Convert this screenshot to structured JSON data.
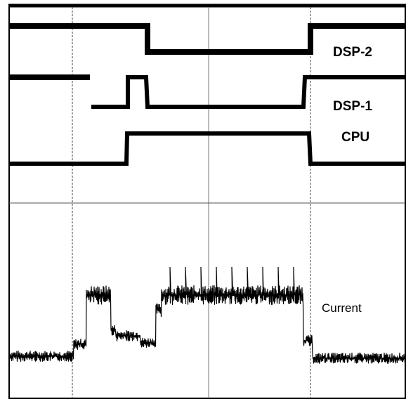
{
  "labels": {
    "dsp2": "DSP-2",
    "dsp1": "DSP-1",
    "cpu": "CPU",
    "current": "Current"
  }
}
